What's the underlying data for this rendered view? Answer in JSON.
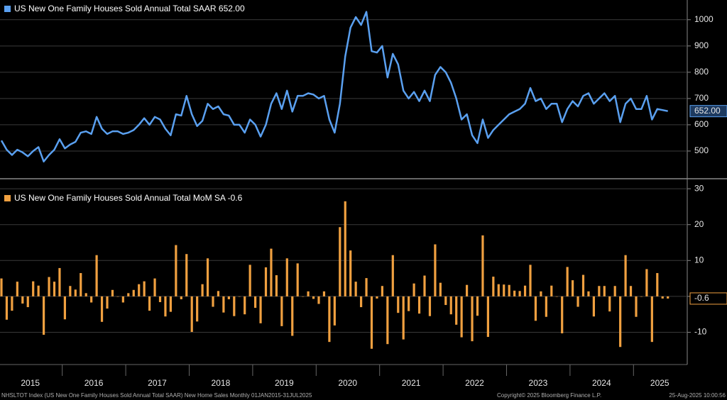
{
  "chart_data": [
    {
      "type": "line",
      "series": [
        {
          "name": "US New One Family Houses Sold Annual Total SAAR",
          "color": "#5aa0f0",
          "values": [
            540,
            505,
            485,
            505,
            495,
            480,
            500,
            515,
            460,
            485,
            505,
            545,
            510,
            525,
            535,
            570,
            575,
            565,
            630,
            585,
            565,
            575,
            575,
            565,
            570,
            580,
            600,
            625,
            600,
            630,
            620,
            585,
            560,
            640,
            635,
            710,
            640,
            595,
            615,
            680,
            660,
            670,
            640,
            635,
            600,
            600,
            570,
            620,
            600,
            555,
            600,
            680,
            720,
            660,
            730,
            650,
            710,
            710,
            720,
            715,
            700,
            710,
            620,
            570,
            680,
            860,
            970,
            1010,
            980,
            1030,
            880,
            875,
            900,
            780,
            870,
            830,
            730,
            700,
            725,
            690,
            730,
            690,
            790,
            820,
            800,
            760,
            700,
            620,
            640,
            560,
            530,
            620,
            550,
            580,
            600,
            620,
            640,
            650,
            660,
            680,
            740,
            690,
            700,
            660,
            680,
            680,
            610,
            660,
            690,
            670,
            710,
            720,
            680,
            700,
            720,
            690,
            710,
            610,
            680,
            700,
            660,
            660,
            710,
            620,
            660,
            656,
            652
          ],
          "last_value_label": "652.00"
        }
      ],
      "ylim": [
        400,
        1075
      ],
      "yticks": [
        500,
        600,
        700,
        800,
        900,
        1000
      ],
      "grid": true
    },
    {
      "type": "bar",
      "series": [
        {
          "name": "US New One Family Houses Sold Annual Total MoM SA",
          "color": "#f0a040",
          "values": [
            5,
            -6.5,
            -4,
            4.1,
            -2,
            -3,
            4.2,
            3,
            -10.7,
            5.4,
            4.1,
            7.9,
            -6.4,
            2.9,
            1.9,
            6.5,
            0.9,
            -1.7,
            11.5,
            -7.1,
            -3.4,
            1.8,
            0,
            -1.7,
            0.9,
            1.8,
            3.4,
            4.2,
            -4,
            5,
            -1.6,
            -5.6,
            -4.3,
            14.3,
            -0.8,
            11.8,
            -9.9,
            -7,
            3.4,
            10.6,
            -2.9,
            1.5,
            -4.5,
            -0.8,
            -5.5,
            0,
            -5,
            8.8,
            -3.2,
            -7.5,
            8.1,
            13.3,
            5.9,
            -8.3,
            10.6,
            -11,
            9.2,
            0,
            1.4,
            -0.7,
            -2.1,
            1.4,
            -12.7,
            -8.1,
            19.3,
            26.5,
            12.8,
            4.1,
            -3,
            5.1,
            -14.6,
            -0.6,
            2.9,
            -13.3,
            11.5,
            -4.6,
            -12,
            -4.1,
            3.6,
            -4.8,
            5.8,
            -5.5,
            14.5,
            3.8,
            -2.4,
            -5,
            -7.9,
            -11.4,
            3.2,
            -12.5,
            -5.4,
            17,
            -11.3,
            5.5,
            3.4,
            3.3,
            3.2,
            1.6,
            1.5,
            3,
            8.8,
            -6.8,
            1.4,
            -5.7,
            3,
            0,
            -10.3,
            8.2,
            4.5,
            -2.9,
            6,
            1.4,
            -5.6,
            2.9,
            2.9,
            -4.2,
            2.9,
            -14.1,
            11.5,
            2.9,
            -5.7,
            0,
            7.6,
            -12.7,
            6.5,
            -0.6,
            -0.6
          ],
          "last_value_label": "-0.6"
        }
      ],
      "ylim": [
        -18.6,
        32
      ],
      "yticks": [
        -10,
        0,
        10,
        20,
        30
      ],
      "grid": true,
      "categories": [
        null,
        null,
        null,
        null,
        null,
        null,
        "2015",
        null,
        null,
        null,
        null,
        null,
        null,
        null,
        null,
        null,
        null,
        null,
        "2016",
        null,
        null,
        null,
        null,
        null,
        null,
        null,
        null,
        null,
        null,
        null,
        "2017",
        null,
        null,
        null,
        null,
        null,
        null,
        null,
        null,
        null,
        null,
        null,
        "2018",
        null,
        null,
        null,
        null,
        null,
        null,
        null,
        null,
        null,
        null,
        null,
        "2019",
        null,
        null,
        null,
        null,
        null,
        null,
        null,
        null,
        null,
        null,
        null,
        "2020",
        null,
        null,
        null,
        null,
        null,
        null,
        null,
        null,
        null,
        null,
        null,
        "2021",
        null,
        null,
        null,
        null,
        null,
        null,
        null,
        null,
        null,
        null,
        null,
        "2022",
        null,
        null,
        null,
        null,
        null,
        null,
        null,
        null,
        null,
        null,
        null,
        "2023",
        null,
        null,
        null,
        null,
        null,
        null,
        null,
        null,
        null,
        null,
        null,
        "2024",
        null,
        null,
        null,
        null,
        null,
        null,
        null,
        null,
        null,
        null,
        "2025",
        null
      ]
    }
  ],
  "footer": {
    "source": "NHSLTOT Index (US New One Family Houses Sold Annual Total SAAR) New Home Sales  Monthly 01JAN2015-31JUL2025",
    "copyright": "Copyright© 2025 Bloomberg Finance L.P.",
    "timestamp": "25-Aug-2025 10:00:56"
  }
}
